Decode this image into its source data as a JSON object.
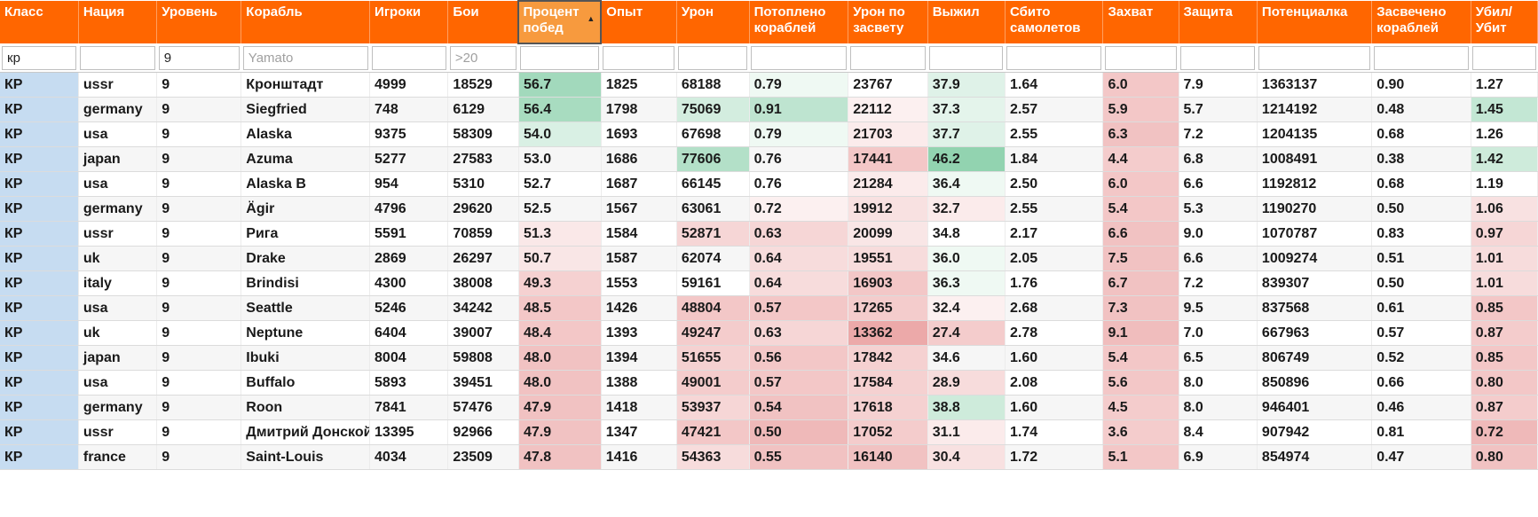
{
  "columns": [
    {
      "key": "cls",
      "label": "Класс",
      "width": 80
    },
    {
      "key": "nation",
      "label": "Нация",
      "width": 80
    },
    {
      "key": "tier",
      "label": "Уровень",
      "width": 86
    },
    {
      "key": "ship",
      "label": "Корабль",
      "width": 131
    },
    {
      "key": "players",
      "label": "Игроки",
      "width": 80
    },
    {
      "key": "battles",
      "label": "Бои",
      "width": 72
    },
    {
      "key": "winrate",
      "label": "Процент побед",
      "width": 84,
      "sorted": true
    },
    {
      "key": "exp",
      "label": "Опыт",
      "width": 77
    },
    {
      "key": "damage",
      "label": "Урон",
      "width": 74
    },
    {
      "key": "kills",
      "label": "Потоплено кораблей",
      "width": 101
    },
    {
      "key": "spot_dmg",
      "label": "Урон по засвету",
      "width": 81
    },
    {
      "key": "survived",
      "label": "Выжил",
      "width": 79
    },
    {
      "key": "planes",
      "label": "Сбито самолетов",
      "width": 100
    },
    {
      "key": "capture",
      "label": "Захват",
      "width": 77
    },
    {
      "key": "defense",
      "label": "Защита",
      "width": 80
    },
    {
      "key": "potential",
      "label": "Потенциалка",
      "width": 117
    },
    {
      "key": "spotted",
      "label": "Засвечено кораблей",
      "width": 101
    },
    {
      "key": "kd",
      "label": "Убил/ Убит",
      "width": 68
    }
  ],
  "filters": {
    "cls": {
      "value": "кр",
      "placeholder": ""
    },
    "nation": {
      "value": "",
      "placeholder": ""
    },
    "tier": {
      "value": "9",
      "placeholder": ""
    },
    "ship": {
      "value": "",
      "placeholder": "Yamato"
    },
    "players": {
      "value": "",
      "placeholder": ""
    },
    "battles": {
      "value": "",
      "placeholder": ">20"
    },
    "winrate": {
      "value": "",
      "placeholder": ""
    },
    "exp": {
      "value": "",
      "placeholder": ""
    },
    "damage": {
      "value": "",
      "placeholder": ""
    },
    "kills": {
      "value": "",
      "placeholder": ""
    },
    "spot_dmg": {
      "value": "",
      "placeholder": ""
    },
    "survived": {
      "value": "",
      "placeholder": ""
    },
    "planes": {
      "value": "",
      "placeholder": ""
    },
    "capture": {
      "value": "",
      "placeholder": ""
    },
    "defense": {
      "value": "",
      "placeholder": ""
    },
    "potential": {
      "value": "",
      "placeholder": ""
    },
    "spotted": {
      "value": "",
      "placeholder": ""
    },
    "kd": {
      "value": "",
      "placeholder": ""
    }
  },
  "colors": {
    "header": "#ff6600",
    "class_cell": "#c6dcf1",
    "good": "#8ecfa9",
    "bad": "#e99a9a"
  },
  "rows": [
    [
      "КР",
      "ussr",
      "9",
      "Кронштадт",
      "4999",
      "18529",
      "56.7",
      "1825",
      "68188",
      "0.79",
      "23767",
      "37.9",
      "1.64",
      "6.0",
      "7.9",
      "1363137",
      "0.90",
      "1.27"
    ],
    [
      "КР",
      "germany",
      "9",
      "Siegfried",
      "748",
      "6129",
      "56.4",
      "1798",
      "75069",
      "0.91",
      "22112",
      "37.3",
      "2.57",
      "5.9",
      "5.7",
      "1214192",
      "0.48",
      "1.45"
    ],
    [
      "КР",
      "usa",
      "9",
      "Alaska",
      "9375",
      "58309",
      "54.0",
      "1693",
      "67698",
      "0.79",
      "21703",
      "37.7",
      "2.55",
      "6.3",
      "7.2",
      "1204135",
      "0.68",
      "1.26"
    ],
    [
      "КР",
      "japan",
      "9",
      "Azuma",
      "5277",
      "27583",
      "53.0",
      "1686",
      "77606",
      "0.76",
      "17441",
      "46.2",
      "1.84",
      "4.4",
      "6.8",
      "1008491",
      "0.38",
      "1.42"
    ],
    [
      "КР",
      "usa",
      "9",
      "Alaska B",
      "954",
      "5310",
      "52.7",
      "1687",
      "66145",
      "0.76",
      "21284",
      "36.4",
      "2.50",
      "6.0",
      "6.6",
      "1192812",
      "0.68",
      "1.19"
    ],
    [
      "КР",
      "germany",
      "9",
      "Ägir",
      "4796",
      "29620",
      "52.5",
      "1567",
      "63061",
      "0.72",
      "19912",
      "32.7",
      "2.55",
      "5.4",
      "5.3",
      "1190270",
      "0.50",
      "1.06"
    ],
    [
      "КР",
      "ussr",
      "9",
      "Рига",
      "5591",
      "70859",
      "51.3",
      "1584",
      "52871",
      "0.63",
      "20099",
      "34.8",
      "2.17",
      "6.6",
      "9.0",
      "1070787",
      "0.83",
      "0.97"
    ],
    [
      "КР",
      "uk",
      "9",
      "Drake",
      "2869",
      "26297",
      "50.7",
      "1587",
      "62074",
      "0.64",
      "19551",
      "36.0",
      "2.05",
      "7.5",
      "6.6",
      "1009274",
      "0.51",
      "1.01"
    ],
    [
      "КР",
      "italy",
      "9",
      "Brindisi",
      "4300",
      "38008",
      "49.3",
      "1553",
      "59161",
      "0.64",
      "16903",
      "36.3",
      "1.76",
      "6.7",
      "7.2",
      "839307",
      "0.50",
      "1.01"
    ],
    [
      "КР",
      "usa",
      "9",
      "Seattle",
      "5246",
      "34242",
      "48.5",
      "1426",
      "48804",
      "0.57",
      "17265",
      "32.4",
      "2.68",
      "7.3",
      "9.5",
      "837568",
      "0.61",
      "0.85"
    ],
    [
      "КР",
      "uk",
      "9",
      "Neptune",
      "6404",
      "39007",
      "48.4",
      "1393",
      "49247",
      "0.63",
      "13362",
      "27.4",
      "2.78",
      "9.1",
      "7.0",
      "667963",
      "0.57",
      "0.87"
    ],
    [
      "КР",
      "japan",
      "9",
      "Ibuki",
      "8004",
      "59808",
      "48.0",
      "1394",
      "51655",
      "0.56",
      "17842",
      "34.6",
      "1.60",
      "5.4",
      "6.5",
      "806749",
      "0.52",
      "0.85"
    ],
    [
      "КР",
      "usa",
      "9",
      "Buffalo",
      "5893",
      "39451",
      "48.0",
      "1388",
      "49001",
      "0.57",
      "17584",
      "28.9",
      "2.08",
      "5.6",
      "8.0",
      "850896",
      "0.66",
      "0.80"
    ],
    [
      "КР",
      "germany",
      "9",
      "Roon",
      "7841",
      "57476",
      "47.9",
      "1418",
      "53937",
      "0.54",
      "17618",
      "38.8",
      "1.60",
      "4.5",
      "8.0",
      "946401",
      "0.46",
      "0.87"
    ],
    [
      "КР",
      "ussr",
      "9",
      "Дмитрий Донской",
      "13395",
      "92966",
      "47.9",
      "1347",
      "47421",
      "0.50",
      "17052",
      "31.1",
      "1.74",
      "3.6",
      "8.4",
      "907942",
      "0.81",
      "0.72"
    ],
    [
      "КР",
      "france",
      "9",
      "Saint-Louis",
      "4034",
      "23509",
      "47.8",
      "1416",
      "54363",
      "0.55",
      "16140",
      "30.4",
      "1.72",
      "5.1",
      "6.9",
      "854974",
      "0.47",
      "0.80"
    ]
  ],
  "cell_shading": {
    "winrate": [
      0.85,
      0.8,
      0.35,
      0,
      0,
      0,
      -0.22,
      -0.25,
      -0.45,
      -0.55,
      -0.55,
      -0.6,
      -0.6,
      -0.6,
      -0.6,
      -0.6
    ],
    "damage": [
      0,
      0.4,
      0,
      0.7,
      0,
      0,
      -0.4,
      0,
      0,
      -0.55,
      -0.5,
      -0.45,
      -0.5,
      -0.4,
      -0.55,
      -0.35
    ],
    "kills": [
      0.15,
      0.6,
      0.15,
      0,
      0,
      -0.15,
      -0.4,
      -0.35,
      -0.35,
      -0.55,
      -0.4,
      -0.55,
      -0.55,
      -0.6,
      -0.7,
      -0.6
    ],
    "spot_dmg": [
      0,
      -0.15,
      -0.2,
      -0.55,
      -0.2,
      -0.3,
      -0.25,
      -0.35,
      -0.55,
      -0.5,
      -0.85,
      -0.45,
      -0.45,
      -0.45,
      -0.5,
      -0.6
    ],
    "survived": [
      0.3,
      0.25,
      0.3,
      1.0,
      0.15,
      -0.2,
      0,
      0.15,
      0.15,
      -0.15,
      -0.5,
      0,
      -0.35,
      0.45,
      -0.2,
      -0.3
    ],
    "capture": [
      -0.55,
      -0.55,
      -0.6,
      -0.5,
      -0.55,
      -0.55,
      -0.6,
      -0.6,
      -0.6,
      -0.6,
      -0.65,
      -0.55,
      -0.55,
      -0.5,
      -0.5,
      -0.55
    ],
    "kd": [
      0,
      0.55,
      0,
      0.45,
      0,
      -0.3,
      -0.4,
      -0.35,
      -0.35,
      -0.55,
      -0.5,
      -0.55,
      -0.55,
      -0.5,
      -0.7,
      -0.6
    ]
  }
}
